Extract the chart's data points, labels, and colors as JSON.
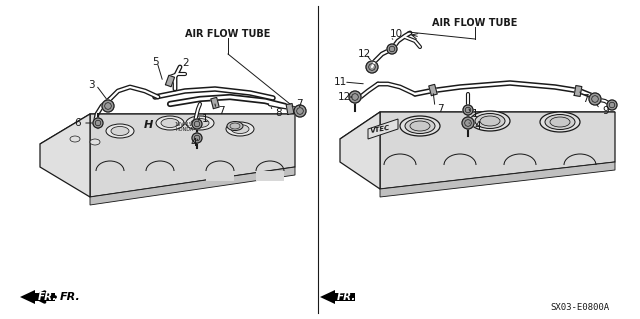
{
  "bg_color": "#ffffff",
  "line_color": "#1a1a1a",
  "part_number": "SX03-E0800A",
  "left_label": "AIR FLOW TUBE",
  "right_label": "AIR FLOW TUBE",
  "gray_fill": "#c8c8c8",
  "light_gray": "#e8e8e8",
  "mid_gray": "#b0b0b0"
}
